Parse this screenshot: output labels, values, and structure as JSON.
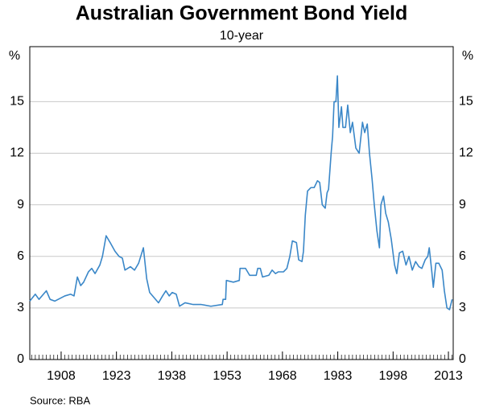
{
  "chart_data": {
    "type": "line",
    "title": "Australian Government Bond Yield",
    "subtitle": "10-year",
    "y_unit": "%",
    "y2_unit": "%",
    "source": "Source: RBA",
    "xlim": [
      1899.5,
      2014.3
    ],
    "xticks": [
      1908,
      1923,
      1938,
      1953,
      1968,
      1983,
      1998,
      2013
    ],
    "ylim": [
      0,
      18.2
    ],
    "yticks": [
      0,
      3,
      6,
      9,
      12,
      15
    ],
    "grid": true,
    "series": [
      {
        "color": "#3a87c8",
        "x": [
          1899.5,
          1901,
          1902,
          1904,
          1905,
          1906.3,
          1909,
          1910.6,
          1911.5,
          1912.4,
          1913.3,
          1914.1,
          1915.4,
          1916.3,
          1917.2,
          1918.5,
          1919.2,
          1920.2,
          1921.3,
          1922.6,
          1923.7,
          1924.6,
          1925.3,
          1926.8,
          1927.9,
          1929,
          1930.3,
          1931.2,
          1932,
          1934.4,
          1935.5,
          1936.4,
          1937.3,
          1938.1,
          1939.2,
          1940.1,
          1941.6,
          1943.8,
          1946,
          1948.6,
          1951.7,
          1951.9,
          1952.6,
          1952.8,
          1954.7,
          1956.3,
          1956.5,
          1958,
          1959.1,
          1960.9,
          1961.3,
          1962,
          1962.6,
          1964.3,
          1965.2,
          1966.1,
          1966.9,
          1968.3,
          1969.2,
          1970,
          1970.7,
          1971.8,
          1972.4,
          1973.3,
          1973.7,
          1974.2,
          1974.8,
          1975.7,
          1976.6,
          1977.5,
          1978.1,
          1978.8,
          1979.6,
          1980.1,
          1980.5,
          1981.2,
          1981.6,
          1982,
          1982.5,
          1982.9,
          1983.3,
          1984,
          1984.4,
          1985.1,
          1985.7,
          1986.4,
          1987,
          1987.9,
          1988.8,
          1989.7,
          1990.3,
          1991,
          1991.6,
          1992.3,
          1992.9,
          1993.6,
          1994.3,
          1994.7,
          1995.4,
          1996,
          1996.7,
          1997.5,
          1998.4,
          1999,
          1999.7,
          2000.6,
          2001.5,
          2002.3,
          2003.2,
          2004.1,
          2005,
          2005.8,
          2006.7,
          2007.4,
          2007.8,
          2008.5,
          2008.9,
          2009.6,
          2010.4,
          2011.3,
          2011.9,
          2012.6,
          2013.3,
          2014
        ],
        "values": [
          3.4,
          3.8,
          3.5,
          4.0,
          3.5,
          3.4,
          3.7,
          3.8,
          3.7,
          4.8,
          4.3,
          4.5,
          5.1,
          5.3,
          5.0,
          5.5,
          6.0,
          7.2,
          6.8,
          6.3,
          6.0,
          5.9,
          5.2,
          5.4,
          5.2,
          5.6,
          6.5,
          4.7,
          3.9,
          3.3,
          3.7,
          4.0,
          3.7,
          3.9,
          3.8,
          3.1,
          3.3,
          3.2,
          3.2,
          3.1,
          3.2,
          3.5,
          3.5,
          4.6,
          4.5,
          4.6,
          5.3,
          5.3,
          4.9,
          4.9,
          5.3,
          5.3,
          4.8,
          4.9,
          5.2,
          5.0,
          5.1,
          5.1,
          5.3,
          6.0,
          6.9,
          6.8,
          5.8,
          5.7,
          6.3,
          8.4,
          9.8,
          10.0,
          10.0,
          10.4,
          10.3,
          9.0,
          8.8,
          9.7,
          9.9,
          12.0,
          13.0,
          15.0,
          15.0,
          16.5,
          13.5,
          14.7,
          13.5,
          13.5,
          14.8,
          13.2,
          13.8,
          12.3,
          12.0,
          13.8,
          13.2,
          13.7,
          12.0,
          10.5,
          9.0,
          7.5,
          6.5,
          9.0,
          9.5,
          8.5,
          8.0,
          7.0,
          5.5,
          5.0,
          6.2,
          6.3,
          5.5,
          6.0,
          5.2,
          5.7,
          5.4,
          5.3,
          5.8,
          6.0,
          6.5,
          5.1,
          4.2,
          5.6,
          5.6,
          5.2,
          4.0,
          3.0,
          2.9,
          3.5
        ]
      }
    ]
  }
}
